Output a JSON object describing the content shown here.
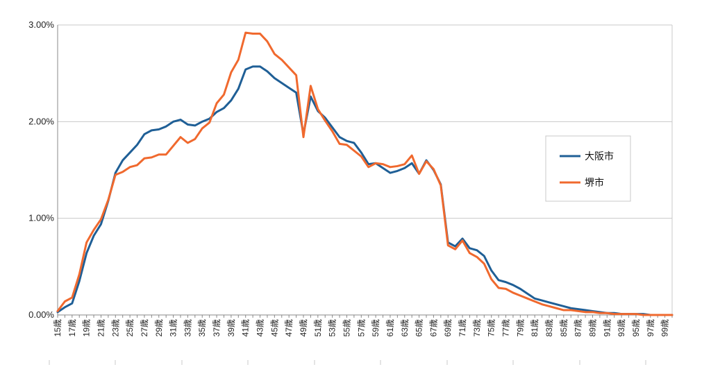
{
  "chart_data": {
    "type": "line",
    "x": [
      15,
      16,
      17,
      18,
      19,
      20,
      21,
      22,
      23,
      24,
      25,
      26,
      27,
      28,
      29,
      30,
      31,
      32,
      33,
      34,
      35,
      36,
      37,
      38,
      39,
      40,
      41,
      42,
      43,
      44,
      45,
      46,
      47,
      48,
      49,
      50,
      51,
      52,
      53,
      54,
      55,
      56,
      57,
      58,
      59,
      60,
      61,
      62,
      63,
      64,
      65,
      66,
      67,
      68,
      69,
      70,
      71,
      72,
      73,
      74,
      75,
      76,
      77,
      78,
      79,
      80,
      81,
      82,
      83,
      84,
      85,
      86,
      87,
      88,
      89,
      90,
      91,
      92,
      93,
      94,
      95,
      96,
      97,
      98,
      99,
      100
    ],
    "x_tick_values": [
      15,
      17,
      19,
      21,
      23,
      25,
      27,
      29,
      31,
      33,
      35,
      37,
      39,
      41,
      43,
      45,
      47,
      49,
      51,
      53,
      55,
      57,
      59,
      61,
      63,
      65,
      67,
      69,
      71,
      73,
      75,
      77,
      79,
      81,
      83,
      85,
      87,
      89,
      91,
      93,
      95,
      97,
      99
    ],
    "x_tick_suffix": "歳",
    "y_ticks": [
      "0.00%",
      "1.00%",
      "2.00%",
      "3.00%"
    ],
    "ylim": [
      0,
      3.0
    ],
    "grid": true,
    "legend_position": "right",
    "series": [
      {
        "name": "大阪市",
        "color": "#1f5f96",
        "values": [
          0.03,
          0.08,
          0.12,
          0.35,
          0.64,
          0.82,
          0.94,
          1.18,
          1.47,
          1.6,
          1.68,
          1.76,
          1.87,
          1.91,
          1.92,
          1.95,
          2.0,
          2.02,
          1.97,
          1.96,
          2.0,
          2.03,
          2.1,
          2.14,
          2.22,
          2.34,
          2.54,
          2.57,
          2.57,
          2.52,
          2.45,
          2.4,
          2.35,
          2.3,
          1.87,
          2.26,
          2.11,
          2.04,
          1.94,
          1.84,
          1.8,
          1.78,
          1.68,
          1.56,
          1.57,
          1.52,
          1.47,
          1.49,
          1.52,
          1.57,
          1.46,
          1.6,
          1.5,
          1.35,
          0.75,
          0.71,
          0.79,
          0.69,
          0.67,
          0.61,
          0.46,
          0.36,
          0.34,
          0.31,
          0.27,
          0.22,
          0.17,
          0.15,
          0.13,
          0.11,
          0.09,
          0.07,
          0.06,
          0.05,
          0.04,
          0.03,
          0.02,
          0.02,
          0.01,
          0.01,
          0.01,
          0.01,
          0.0,
          0.0,
          0.0,
          0.0
        ]
      },
      {
        "name": "堺市",
        "color": "#f0692e",
        "values": [
          0.04,
          0.14,
          0.18,
          0.42,
          0.75,
          0.88,
          0.99,
          1.19,
          1.45,
          1.48,
          1.53,
          1.55,
          1.62,
          1.63,
          1.66,
          1.66,
          1.75,
          1.84,
          1.78,
          1.82,
          1.93,
          1.99,
          2.19,
          2.28,
          2.51,
          2.64,
          2.92,
          2.91,
          2.91,
          2.83,
          2.7,
          2.64,
          2.56,
          2.48,
          1.84,
          2.37,
          2.13,
          2.01,
          1.9,
          1.77,
          1.76,
          1.7,
          1.64,
          1.53,
          1.57,
          1.56,
          1.53,
          1.54,
          1.56,
          1.65,
          1.46,
          1.59,
          1.51,
          1.34,
          0.72,
          0.68,
          0.77,
          0.64,
          0.6,
          0.53,
          0.37,
          0.28,
          0.27,
          0.23,
          0.2,
          0.17,
          0.14,
          0.11,
          0.09,
          0.07,
          0.05,
          0.05,
          0.04,
          0.03,
          0.03,
          0.02,
          0.02,
          0.01,
          0.01,
          0.01,
          0.01,
          0.0,
          0.0,
          0.0,
          0.0,
          0.0
        ]
      }
    ]
  }
}
